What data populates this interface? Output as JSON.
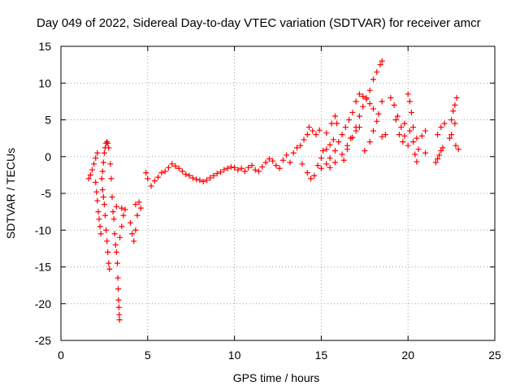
{
  "chart_data": {
    "type": "scatter",
    "title": "Day 049 of 2022, Sidereal Day-to-day VTEC variation (SDTVAR) for receiver amcr",
    "xlabel": "GPS time / hours",
    "ylabel": "SDTVAR / TECUs",
    "xlim": [
      0,
      25
    ],
    "ylim": [
      -25,
      15
    ],
    "xticks": [
      0,
      5,
      10,
      15,
      20,
      25
    ],
    "yticks": [
      -25,
      -20,
      -15,
      -10,
      -5,
      0,
      5,
      10,
      15
    ],
    "grid": true,
    "marker": "+",
    "colors": {
      "series": "#ff0000",
      "axes": "#000000",
      "grid": "#a0a0a0"
    },
    "series": [
      {
        "name": "SDTVAR",
        "points": [
          [
            1.6,
            -3.0
          ],
          [
            1.7,
            -2.5
          ],
          [
            1.8,
            -1.8
          ],
          [
            1.9,
            -1.0
          ],
          [
            2.0,
            -0.2
          ],
          [
            2.1,
            0.5
          ],
          [
            2.0,
            -3.5
          ],
          [
            2.05,
            -4.8
          ],
          [
            2.1,
            -6.0
          ],
          [
            2.15,
            -7.5
          ],
          [
            2.2,
            -8.5
          ],
          [
            2.25,
            -9.5
          ],
          [
            2.3,
            -10.5
          ],
          [
            2.35,
            -3.0
          ],
          [
            2.4,
            -2.0
          ],
          [
            2.45,
            -0.8
          ],
          [
            2.5,
            0.5
          ],
          [
            2.55,
            1.2
          ],
          [
            2.6,
            1.8
          ],
          [
            2.65,
            2.0
          ],
          [
            2.7,
            1.8
          ],
          [
            2.75,
            1.2
          ],
          [
            2.4,
            -4.5
          ],
          [
            2.45,
            -5.5
          ],
          [
            2.5,
            -6.5
          ],
          [
            2.55,
            -8.0
          ],
          [
            2.6,
            -10.0
          ],
          [
            2.65,
            -11.5
          ],
          [
            2.7,
            -13.0
          ],
          [
            2.75,
            -14.5
          ],
          [
            2.8,
            -15.3
          ],
          [
            2.85,
            -1.0
          ],
          [
            2.9,
            -3.0
          ],
          [
            2.95,
            -5.5
          ],
          [
            3.0,
            -7.5
          ],
          [
            3.05,
            -8.5
          ],
          [
            3.1,
            -10.5
          ],
          [
            3.15,
            -12.0
          ],
          [
            3.2,
            -13.0
          ],
          [
            3.2,
            -6.8
          ],
          [
            3.25,
            -14.5
          ],
          [
            3.28,
            -16.5
          ],
          [
            3.3,
            -18.0
          ],
          [
            3.32,
            -19.5
          ],
          [
            3.34,
            -20.5
          ],
          [
            3.36,
            -21.5
          ],
          [
            3.38,
            -22.2
          ],
          [
            3.4,
            -11.0
          ],
          [
            3.5,
            -9.5
          ],
          [
            3.6,
            -8.0
          ],
          [
            3.7,
            -7.2
          ],
          [
            3.5,
            -7.0
          ],
          [
            4.0,
            -9.0
          ],
          [
            4.1,
            -10.5
          ],
          [
            4.2,
            -11.5
          ],
          [
            4.3,
            -10.0
          ],
          [
            4.4,
            -8.0
          ],
          [
            4.3,
            -6.5
          ],
          [
            4.5,
            -6.2
          ],
          [
            4.6,
            -7.0
          ],
          [
            4.9,
            -2.2
          ],
          [
            5.0,
            -3.0
          ],
          [
            5.2,
            -4.0
          ],
          [
            5.4,
            -3.3
          ],
          [
            5.6,
            -2.8
          ],
          [
            5.8,
            -2.2
          ],
          [
            6.0,
            -2.0
          ],
          [
            6.2,
            -1.5
          ],
          [
            6.4,
            -1.0
          ],
          [
            6.6,
            -1.3
          ],
          [
            6.8,
            -1.6
          ],
          [
            7.0,
            -2.0
          ],
          [
            7.2,
            -2.4
          ],
          [
            7.4,
            -2.6
          ],
          [
            7.6,
            -2.9
          ],
          [
            7.8,
            -3.1
          ],
          [
            8.0,
            -3.2
          ],
          [
            8.2,
            -3.4
          ],
          [
            8.4,
            -3.2
          ],
          [
            8.6,
            -2.9
          ],
          [
            8.8,
            -2.6
          ],
          [
            9.0,
            -2.3
          ],
          [
            9.2,
            -2.1
          ],
          [
            9.4,
            -1.8
          ],
          [
            9.6,
            -1.6
          ],
          [
            9.8,
            -1.4
          ],
          [
            10.0,
            -1.5
          ],
          [
            10.2,
            -1.8
          ],
          [
            10.4,
            -1.6
          ],
          [
            10.6,
            -2.0
          ],
          [
            10.8,
            -1.5
          ],
          [
            11.0,
            -1.2
          ],
          [
            11.2,
            -1.8
          ],
          [
            11.4,
            -2.0
          ],
          [
            11.6,
            -1.4
          ],
          [
            11.8,
            -0.8
          ],
          [
            12.0,
            -0.3
          ],
          [
            12.2,
            -0.6
          ],
          [
            12.4,
            -1.2
          ],
          [
            12.6,
            -1.6
          ],
          [
            12.8,
            -0.5
          ],
          [
            13.0,
            0.2
          ],
          [
            13.2,
            -0.8
          ],
          [
            13.4,
            0.5
          ],
          [
            13.6,
            1.2
          ],
          [
            13.8,
            1.5
          ],
          [
            14.0,
            2.3
          ],
          [
            14.2,
            3.0
          ],
          [
            14.3,
            4.0
          ],
          [
            14.5,
            3.5
          ],
          [
            14.7,
            3.0
          ],
          [
            14.9,
            3.6
          ],
          [
            13.9,
            -1.0
          ],
          [
            14.2,
            -2.2
          ],
          [
            14.4,
            -3.0
          ],
          [
            14.6,
            -2.6
          ],
          [
            14.8,
            -1.2
          ],
          [
            15.0,
            -0.2
          ],
          [
            15.1,
            0.8
          ],
          [
            15.3,
            1.0
          ],
          [
            15.5,
            1.6
          ],
          [
            15.7,
            2.3
          ],
          [
            15.3,
            3.2
          ],
          [
            15.6,
            4.5
          ],
          [
            15.8,
            5.5
          ],
          [
            15.9,
            4.5
          ],
          [
            15.0,
            -1.6
          ],
          [
            15.3,
            -1.0
          ],
          [
            15.5,
            -0.2
          ],
          [
            15.8,
            0.8
          ],
          [
            16.0,
            2.0
          ],
          [
            16.2,
            3.0
          ],
          [
            16.4,
            4.0
          ],
          [
            16.6,
            5.0
          ],
          [
            16.8,
            6.0
          ],
          [
            17.0,
            7.5
          ],
          [
            17.2,
            8.5
          ],
          [
            17.4,
            8.2
          ],
          [
            17.6,
            7.8
          ],
          [
            17.8,
            7.2
          ],
          [
            18.0,
            6.5
          ],
          [
            15.5,
            -1.5
          ],
          [
            15.8,
            -0.8
          ],
          [
            16.2,
            0.3
          ],
          [
            16.5,
            1.5
          ],
          [
            16.8,
            2.6
          ],
          [
            17.0,
            4.0
          ],
          [
            17.2,
            5.5
          ],
          [
            17.4,
            6.8
          ],
          [
            17.6,
            8.0
          ],
          [
            17.8,
            9.0
          ],
          [
            18.0,
            10.5
          ],
          [
            18.2,
            11.5
          ],
          [
            18.4,
            12.5
          ],
          [
            18.5,
            13.0
          ],
          [
            16.3,
            -0.5
          ],
          [
            16.5,
            1.0
          ],
          [
            16.7,
            2.5
          ],
          [
            17.0,
            3.5
          ],
          [
            17.2,
            4.0
          ],
          [
            17.5,
            0.8
          ],
          [
            17.8,
            2.0
          ],
          [
            18.0,
            3.5
          ],
          [
            18.2,
            4.8
          ],
          [
            18.3,
            5.8
          ],
          [
            18.5,
            7.5
          ],
          [
            18.5,
            2.7
          ],
          [
            18.7,
            3.0
          ],
          [
            19.0,
            8.0
          ],
          [
            19.2,
            7.0
          ],
          [
            19.4,
            5.5
          ],
          [
            19.6,
            4.0
          ],
          [
            19.8,
            2.8
          ],
          [
            20.0,
            1.5
          ],
          [
            20.1,
            3.5
          ],
          [
            20.3,
            2.0
          ],
          [
            20.4,
            0.3
          ],
          [
            20.5,
            -0.7
          ],
          [
            19.3,
            5.0
          ],
          [
            19.5,
            3.0
          ],
          [
            19.7,
            2.0
          ],
          [
            19.8,
            4.5
          ],
          [
            20.0,
            8.5
          ],
          [
            20.1,
            7.5
          ],
          [
            20.2,
            6.0
          ],
          [
            20.3,
            4.0
          ],
          [
            20.5,
            2.5
          ],
          [
            20.6,
            1.0
          ],
          [
            20.8,
            2.8
          ],
          [
            21.0,
            3.5
          ],
          [
            21.0,
            0.5
          ],
          [
            21.6,
            -0.8
          ],
          [
            21.7,
            -0.3
          ],
          [
            21.8,
            0.2
          ],
          [
            21.9,
            0.8
          ],
          [
            22.0,
            1.2
          ],
          [
            21.7,
            3.0
          ],
          [
            21.9,
            4.0
          ],
          [
            22.1,
            4.5
          ],
          [
            22.4,
            2.5
          ],
          [
            22.5,
            5.0
          ],
          [
            22.6,
            6.2
          ],
          [
            22.7,
            7.0
          ],
          [
            22.8,
            8.0
          ],
          [
            22.5,
            3.0
          ],
          [
            22.7,
            4.5
          ],
          [
            22.9,
            1.0
          ],
          [
            22.75,
            1.5
          ]
        ]
      }
    ]
  }
}
